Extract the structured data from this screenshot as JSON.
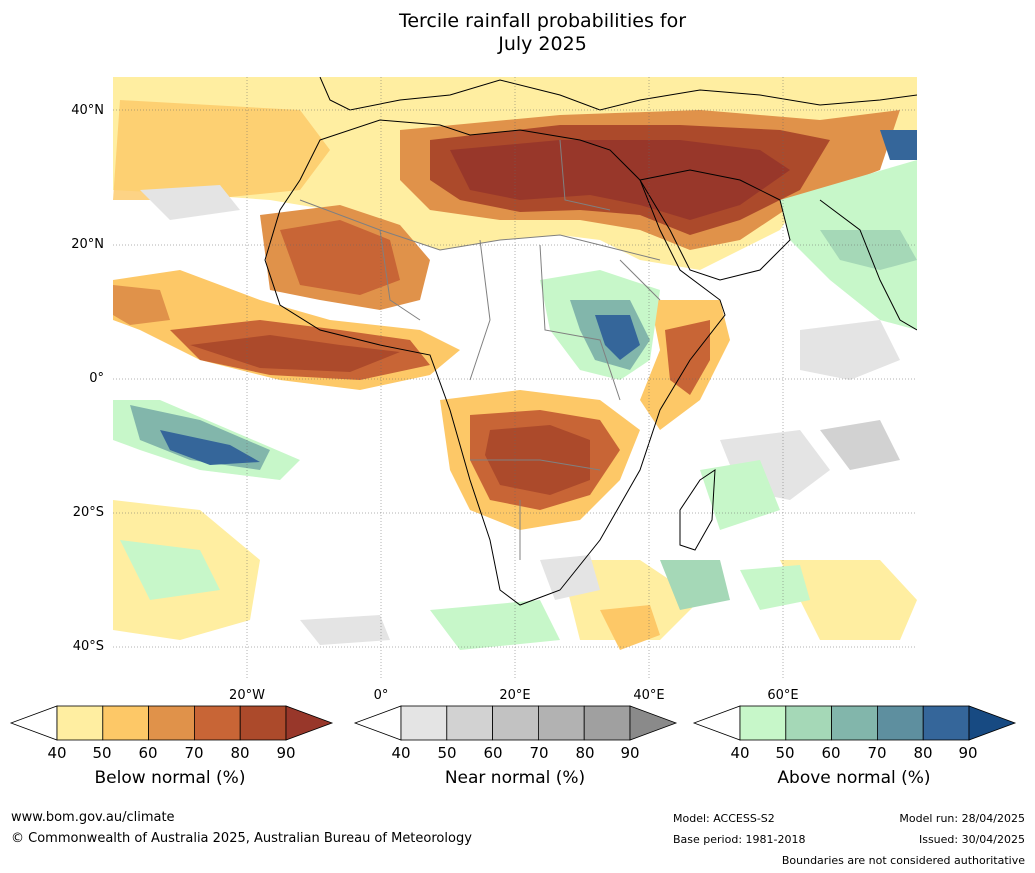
{
  "title_line1": "Tercile rainfall probabilities for",
  "title_line2": "July 2025",
  "lat_labels": [
    "40°N",
    "20°N",
    "0°",
    "20°S",
    "40°S"
  ],
  "lon_labels": [
    "20°W",
    "0°",
    "20°E",
    "40°E",
    "60°E"
  ],
  "colorbars": [
    {
      "label": "Below normal (%)",
      "ticks": [
        "40",
        "50",
        "60",
        "70",
        "80",
        "90"
      ],
      "colors": [
        "#ffeea1",
        "#fdc867",
        "#e0924a",
        "#c86536",
        "#ac4a2b",
        "#98372a"
      ]
    },
    {
      "label": "Near normal (%)",
      "ticks": [
        "40",
        "50",
        "60",
        "70",
        "80",
        "90"
      ],
      "colors": [
        "#e4e4e4",
        "#d2d2d2",
        "#c2c2c2",
        "#b2b2b2",
        "#a0a0a0",
        "#8a8a8a"
      ]
    },
    {
      "label": "Above normal (%)",
      "ticks": [
        "40",
        "50",
        "60",
        "70",
        "80",
        "90"
      ],
      "colors": [
        "#c7f7c9",
        "#a5d8b7",
        "#82b6ab",
        "#5e8f9f",
        "#35669a",
        "#174a82"
      ]
    }
  ],
  "footer": {
    "website": "www.bom.gov.au/climate",
    "copyright": "© Commonwealth of Australia 2025, Australian Bureau of Meteorology",
    "model": "Model: ACCESS-S2",
    "base_period": "Base period: 1981-2018",
    "model_run": "Model run: 28/04/2025",
    "issued": "Issued: 30/04/2025",
    "disclaimer": "Boundaries are not considered authoritative"
  }
}
